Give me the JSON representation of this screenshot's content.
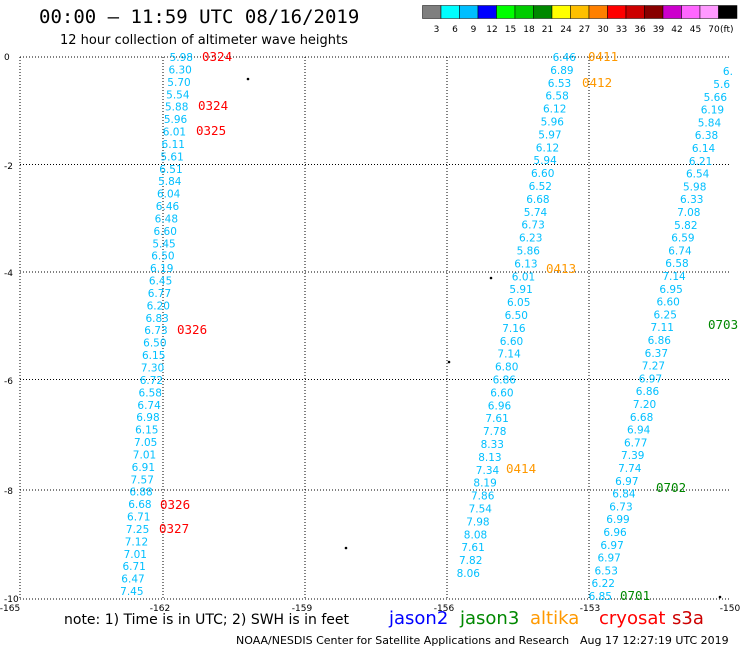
{
  "header": {
    "title": "00:00 — 11:59 UTC 08/16/2019",
    "subtitle": "12 hour collection of altimeter wave heights"
  },
  "colorbar": {
    "labels": [
      "3",
      "6",
      "9",
      "12",
      "15",
      "18",
      "21",
      "24",
      "27",
      "30",
      "33",
      "36",
      "39",
      "42",
      "45",
      "70",
      "(ft)"
    ],
    "colors": [
      "#7f7f7f",
      "#00ffff",
      "#00bfff",
      "#0000ff",
      "#00ff00",
      "#00cc00",
      "#008800",
      "#ffff00",
      "#ffc000",
      "#ff8000",
      "#ff0000",
      "#cc0000",
      "#880000",
      "#cc00cc",
      "#ff66ff",
      "#ff99ff",
      "#000000"
    ]
  },
  "axes": {
    "x_ticks": [
      "-165",
      "-162",
      "-159",
      "-156",
      "-153",
      "-150"
    ],
    "y_ticks": [
      "0",
      "-2",
      "-4",
      "-6",
      "-8",
      "-10"
    ]
  },
  "tracks": {
    "track1": {
      "color": "#00bfff",
      "values": [
        "5.98",
        "6.30",
        "5.70",
        "5.54",
        "5.88",
        "5.96",
        "6.01",
        "6.11",
        "5.61",
        "6.51",
        "5.84",
        "6.04",
        "6.46",
        "6.48",
        "6.60",
        "5.45",
        "6.50",
        "6.19",
        "6.45",
        "6.77",
        "6.20",
        "6.83",
        "6.73",
        "6.50",
        "6.15",
        "7.30",
        "6.72",
        "6.58",
        "6.74",
        "6.98",
        "6.15",
        "7.05",
        "7.01",
        "6.91",
        "7.57",
        "6.88",
        "6.68",
        "6.71",
        "7.25",
        "7.12",
        "7.01",
        "6.71",
        "6.47",
        "7.45"
      ]
    },
    "track2": {
      "color": "#00bfff",
      "values": [
        "6.46",
        "6.89",
        "6.53",
        "6.58",
        "6.12",
        "5.96",
        "5.97",
        "6.12",
        "5.94",
        "6.60",
        "6.52",
        "6.68",
        "5.74",
        "6.73",
        "6.23",
        "5.86",
        "6.13",
        "6.01",
        "5.91",
        "6.05",
        "6.50",
        "7.16",
        "6.60",
        "7.14",
        "6.80",
        "6.86",
        "6.60",
        "6.96",
        "7.61",
        "7.78",
        "8.33",
        "8.13",
        "7.34",
        "8.19",
        "7.86",
        "7.54",
        "7.98",
        "8.08",
        "7.61",
        "7.82",
        "8.06"
      ]
    },
    "track3": {
      "color": "#00bfff",
      "values": [
        "6.85",
        "6.22",
        "6.53",
        "6.97",
        "6.97",
        "6.96",
        "6.99",
        "6.73",
        "6.84",
        "6.97",
        "7.74",
        "7.39",
        "6.77",
        "6.94",
        "6.68",
        "7.20",
        "6.86",
        "6.97",
        "7.27",
        "6.37",
        "6.86",
        "7.11",
        "6.25",
        "6.60",
        "6.95",
        "7.14",
        "6.58",
        "6.74",
        "6.59",
        "5.82",
        "7.08",
        "6.33",
        "5.98",
        "6.54",
        "6.21",
        "6.14",
        "6.38",
        "5.84",
        "6.19",
        "5.66",
        "5.6",
        "6."
      ]
    }
  },
  "time_labels": [
    {
      "text": "0324",
      "color": "#ff0000"
    },
    {
      "text": "0324",
      "color": "#ff0000"
    },
    {
      "text": "0325",
      "color": "#ff0000"
    },
    {
      "text": "0326",
      "color": "#ff0000"
    },
    {
      "text": "0326",
      "color": "#ff0000"
    },
    {
      "text": "0327",
      "color": "#ff0000"
    },
    {
      "text": "0411",
      "color": "#ff9900"
    },
    {
      "text": "0412",
      "color": "#ff9900"
    },
    {
      "text": "0413",
      "color": "#ff9900"
    },
    {
      "text": "0414",
      "color": "#ff9900"
    },
    {
      "text": "0703",
      "color": "#008800"
    },
    {
      "text": "0702",
      "color": "#008800"
    },
    {
      "text": "0701",
      "color": "#008800"
    }
  ],
  "footer": {
    "note": "note: 1) Time is in UTC; 2) SWH is in feet",
    "legend": [
      {
        "label": "jason2",
        "color": "#0000ff"
      },
      {
        "label": "jason3",
        "color": "#008800"
      },
      {
        "label": "altika",
        "color": "#ff9900"
      },
      {
        "label": "cryosat",
        "color": "#ff0000"
      },
      {
        "label": "s3a",
        "color": "#cc0000"
      }
    ],
    "credit": "NOAA/NESDIS Center for Satellite Applications and Research",
    "timestamp": "Aug 17 12:27:19 UTC 2019"
  }
}
